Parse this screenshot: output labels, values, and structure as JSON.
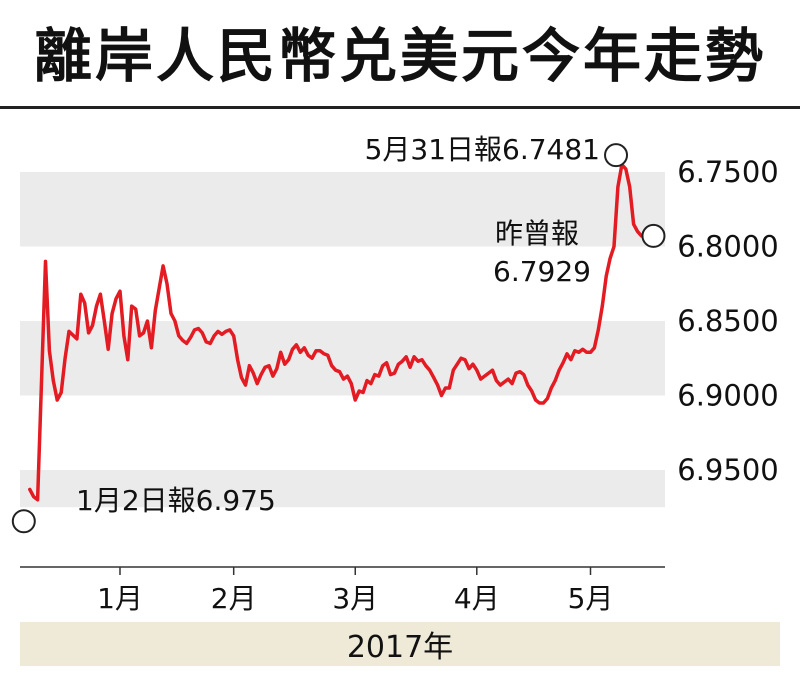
{
  "title": "離岸人民幣兑美元今年走勢",
  "footer_year": "2017年",
  "colors": {
    "line": "#e31b23",
    "band": "#ebebeb",
    "footer": "#eeead7",
    "marker_fill": "#ffffff"
  },
  "chart_data": {
    "type": "line",
    "title": "離岸人民幣兑美元今年走勢",
    "xlabel": "2017年",
    "ylabel": "",
    "y_inverted": true,
    "ylim": [
      6.975,
      6.725
    ],
    "y_ticks": [
      6.75,
      6.8,
      6.85,
      6.9,
      6.95
    ],
    "y_tick_labels": [
      "6.7500",
      "6.8000",
      "6.8500",
      "6.9000",
      "6.9500"
    ],
    "x_ticks": [
      {
        "label": "1月",
        "day": 25
      },
      {
        "label": "2月",
        "day": 54
      },
      {
        "label": "3月",
        "day": 85
      },
      {
        "label": "4月",
        "day": 116
      },
      {
        "label": "5月",
        "day": 145
      }
    ],
    "xlim": [
      -0.5,
      164
    ],
    "grid": "alternating horizontal bands",
    "series": [
      {
        "x": [
          2,
          3,
          4,
          6,
          7,
          8,
          9,
          10,
          11,
          12,
          14,
          15,
          16,
          17,
          18,
          19,
          20,
          21,
          22,
          23,
          24,
          25,
          26,
          27,
          28,
          29,
          30,
          31,
          32,
          33,
          34,
          35,
          36,
          37,
          38,
          39,
          40,
          41,
          42,
          43,
          44,
          45,
          46,
          47,
          48,
          49,
          50,
          51,
          52,
          53,
          54,
          55,
          56,
          57,
          58,
          59,
          60,
          61,
          62,
          63,
          64,
          65,
          66,
          67,
          68,
          69,
          70,
          71,
          72,
          73,
          74,
          75,
          76,
          77,
          78,
          79,
          80,
          81,
          82,
          83,
          84,
          85,
          86,
          87,
          88,
          89,
          90,
          91,
          92,
          93,
          94,
          95,
          96,
          97,
          98,
          99,
          100,
          101,
          102,
          103,
          104,
          105,
          106,
          107,
          108,
          109,
          110,
          111,
          112,
          113,
          114,
          115,
          116,
          117,
          118,
          119,
          120,
          121,
          122,
          123,
          124,
          125,
          126,
          127,
          128,
          129,
          130,
          131,
          132,
          133,
          134,
          135,
          136,
          137,
          138,
          139,
          140,
          141,
          142,
          143,
          144,
          145,
          146,
          147,
          148,
          149,
          150,
          151,
          152,
          153,
          154,
          155,
          156,
          157,
          158
        ],
        "y": [
          6.963,
          6.968,
          6.97,
          6.81,
          6.87,
          6.89,
          6.903,
          6.898,
          6.875,
          6.857,
          6.862,
          6.832,
          6.838,
          6.858,
          6.853,
          6.84,
          6.832,
          6.85,
          6.869,
          6.845,
          6.835,
          6.83,
          6.86,
          6.876,
          6.84,
          6.842,
          6.86,
          6.858,
          6.85,
          6.868,
          6.843,
          6.828,
          6.813,
          6.825,
          6.845,
          6.85,
          6.86,
          6.863,
          6.865,
          6.861,
          6.856,
          6.855,
          6.858,
          6.864,
          6.865,
          6.86,
          6.857,
          6.859,
          6.857,
          6.856,
          6.86,
          6.876,
          6.888,
          6.893,
          6.88,
          6.885,
          6.892,
          6.886,
          6.881,
          6.88,
          6.887,
          6.882,
          6.871,
          6.879,
          6.876,
          6.869,
          6.866,
          6.871,
          6.868,
          6.873,
          6.875,
          6.87,
          6.87,
          6.872,
          6.873,
          6.88,
          6.883,
          6.884,
          6.889,
          6.887,
          6.892,
          6.903,
          6.897,
          6.898,
          6.89,
          6.892,
          6.886,
          6.887,
          6.88,
          6.878,
          6.886,
          6.885,
          6.879,
          6.877,
          6.874,
          6.881,
          6.874,
          6.877,
          6.876,
          6.88,
          6.883,
          6.888,
          6.893,
          6.9,
          6.895,
          6.895,
          6.883,
          6.879,
          6.875,
          6.876,
          6.882,
          6.879,
          6.883,
          6.889,
          6.887,
          6.885,
          6.883,
          6.89,
          6.893,
          6.891,
          6.889,
          6.892,
          6.885,
          6.884,
          6.886,
          6.893,
          6.897,
          6.903,
          6.905,
          6.905,
          6.902,
          6.895,
          6.89,
          6.883,
          6.878,
          6.872,
          6.876,
          6.87,
          6.871,
          6.869,
          6.871,
          6.871,
          6.868,
          6.856,
          6.84,
          6.82,
          6.808,
          6.8,
          6.76,
          6.745,
          6.748,
          6.76,
          6.785,
          6.79,
          6.7929
        ]
      }
    ],
    "annotations": [
      {
        "label": "1月2日報6.975",
        "x": 2,
        "y": 6.975,
        "marker": "circle"
      },
      {
        "label": "5月31日報6.7481",
        "x": 151,
        "y": 6.7481,
        "marker": "circle"
      },
      {
        "label": "昨曾報",
        "label2": "6.7929",
        "x": 158,
        "y": 6.7929,
        "marker": "circle"
      }
    ]
  }
}
